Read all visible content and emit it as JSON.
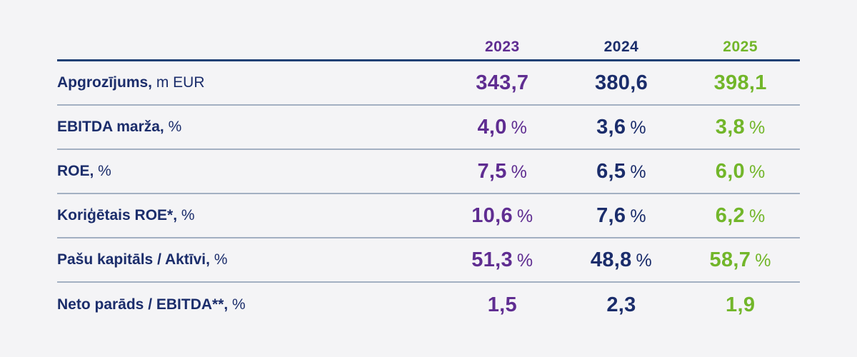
{
  "colors": {
    "background": "#f4f4f6",
    "navy_text": "#1b2d6b",
    "header_rule": "#204075",
    "row_divider": "#a3b0c2",
    "column_colors": [
      "#5f2d91",
      "#1b2d6b",
      "#72b62a"
    ]
  },
  "table": {
    "columns": [
      "2023",
      "2024",
      "2025"
    ],
    "rows": [
      {
        "label_bold": "Apgrozījums,",
        "label_unit": " m EUR",
        "values": [
          "343,7",
          "380,6",
          "398,1"
        ],
        "value_unit": ""
      },
      {
        "label_bold": "EBITDA marža,",
        "label_unit": " %",
        "values": [
          "4,0",
          "3,6",
          "3,8"
        ],
        "value_unit": "%"
      },
      {
        "label_bold": "ROE,",
        "label_unit": " %",
        "values": [
          "7,5",
          "6,5",
          "6,0"
        ],
        "value_unit": "%"
      },
      {
        "label_bold": "Koriģētais ROE*,",
        "label_unit": " %",
        "values": [
          "10,6",
          "7,6",
          "6,2"
        ],
        "value_unit": "%"
      },
      {
        "label_bold": "Pašu kapitāls / Aktīvi,",
        "label_unit": " %",
        "values": [
          "51,3",
          "48,8",
          "58,7"
        ],
        "value_unit": "%"
      },
      {
        "label_bold": "Neto parāds / EBITDA**,",
        "label_unit": " %",
        "values": [
          "1,5",
          "2,3",
          "1,9"
        ],
        "value_unit": ""
      }
    ]
  }
}
